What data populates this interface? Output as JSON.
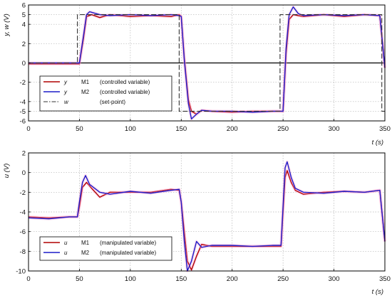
{
  "chart_data": [
    {
      "type": "line",
      "ylabel": "y, w (V)",
      "xlabel": "t (s)",
      "xlim": [
        0,
        350
      ],
      "ylim": [
        -6,
        6
      ],
      "xticks": [
        "0",
        "50",
        "100",
        "150",
        "200",
        "250",
        "300",
        "350"
      ],
      "yticks": [
        "-6",
        "-5",
        "-4",
        "-2",
        "0",
        "2",
        "4",
        "5",
        "6"
      ],
      "grid": true,
      "legend_position": "bottom-left",
      "legend": [
        {
          "symbol": "y",
          "model": "M1",
          "desc": "(controlled variable)",
          "color": "#b00000"
        },
        {
          "symbol": "y",
          "model": "M2",
          "desc": "(controlled variable)",
          "color": "#1c1cc8"
        },
        {
          "symbol": "w",
          "model": "",
          "desc": "(set-point)",
          "color": "#333333"
        }
      ],
      "series": [
        {
          "name": "y M1",
          "color": "#b00000",
          "x": [
            0,
            45,
            50,
            54,
            57,
            62,
            70,
            80,
            100,
            120,
            140,
            148,
            150,
            153,
            157,
            160,
            165,
            170,
            180,
            200,
            220,
            240,
            248,
            250,
            253,
            256,
            260,
            270,
            290,
            310,
            330,
            345,
            350
          ],
          "y": [
            -0.1,
            -0.1,
            -0.1,
            2.5,
            4.8,
            5.0,
            4.7,
            5.0,
            4.8,
            4.9,
            4.8,
            5.0,
            4.8,
            0.5,
            -3.8,
            -5.0,
            -5.3,
            -4.9,
            -5.0,
            -5.1,
            -5.0,
            -5.0,
            -5.0,
            -5.0,
            1.0,
            4.5,
            5.0,
            4.8,
            5.0,
            4.8,
            5.0,
            4.9,
            -0.5
          ]
        },
        {
          "name": "y M2",
          "color": "#1c1cc8",
          "x": [
            0,
            45,
            50,
            54,
            57,
            60,
            70,
            80,
            100,
            120,
            140,
            148,
            150,
            153,
            157,
            160,
            165,
            170,
            180,
            200,
            220,
            240,
            248,
            250,
            253,
            256,
            260,
            265,
            270,
            290,
            310,
            330,
            345,
            350
          ],
          "y": [
            0.0,
            0.0,
            0.0,
            2.8,
            5.0,
            5.3,
            5.0,
            4.9,
            5.0,
            4.9,
            5.0,
            4.9,
            4.8,
            0.3,
            -4.2,
            -5.8,
            -5.3,
            -4.9,
            -5.0,
            -5.0,
            -5.1,
            -5.0,
            -5.0,
            -5.0,
            1.5,
            5.0,
            5.8,
            5.1,
            4.9,
            5.0,
            4.9,
            5.0,
            4.9,
            -0.5
          ]
        },
        {
          "name": "w",
          "color": "#333333",
          "dashed": true,
          "x": [
            0,
            48,
            48,
            148,
            148,
            247,
            247,
            347,
            347,
            350
          ],
          "y": [
            0,
            0,
            5,
            5,
            -5,
            -5,
            5,
            5,
            -5,
            -5
          ]
        }
      ]
    },
    {
      "type": "line",
      "ylabel": "u (V)",
      "xlabel": "t (s)",
      "xlim": [
        0,
        350
      ],
      "ylim": [
        -10,
        2
      ],
      "xticks": [
        "0",
        "50",
        "100",
        "150",
        "200",
        "250",
        "300",
        "350"
      ],
      "yticks": [
        "-10",
        "-8",
        "-6",
        "-4",
        "-2",
        "0",
        "2"
      ],
      "grid": true,
      "legend_position": "bottom-left",
      "legend": [
        {
          "symbol": "u",
          "model": "M1",
          "desc": "(manipulated variable)",
          "color": "#b00000"
        },
        {
          "symbol": "u",
          "model": "M2",
          "desc": "(manipulated variable)",
          "color": "#1c1cc8"
        }
      ],
      "series": [
        {
          "name": "u M1",
          "color": "#b00000",
          "x": [
            0,
            20,
            40,
            48,
            50,
            53,
            57,
            62,
            70,
            80,
            100,
            120,
            140,
            148,
            150,
            153,
            156,
            160,
            165,
            170,
            180,
            200,
            220,
            240,
            248,
            250,
            252,
            254,
            258,
            262,
            270,
            290,
            310,
            330,
            345,
            350
          ],
          "y": [
            -4.5,
            -4.6,
            -4.5,
            -4.5,
            -3.5,
            -1.5,
            -1.0,
            -1.6,
            -2.5,
            -2.0,
            -2.0,
            -2.0,
            -1.7,
            -1.8,
            -3.0,
            -6.0,
            -9.0,
            -9.9,
            -8.5,
            -7.3,
            -7.5,
            -7.5,
            -7.5,
            -7.5,
            -7.5,
            -4.0,
            -0.5,
            0.2,
            -1.0,
            -1.8,
            -2.2,
            -2.0,
            -1.9,
            -2.0,
            -1.8,
            -7.0
          ]
        },
        {
          "name": "u M2",
          "color": "#1c1cc8",
          "x": [
            0,
            20,
            40,
            48,
            50,
            53,
            56,
            60,
            70,
            80,
            100,
            120,
            140,
            148,
            150,
            153,
            156,
            160,
            165,
            170,
            180,
            200,
            220,
            240,
            248,
            250,
            252,
            254,
            258,
            262,
            270,
            290,
            310,
            330,
            345,
            350
          ],
          "y": [
            -4.6,
            -4.7,
            -4.5,
            -4.5,
            -3.0,
            -1.0,
            -0.3,
            -1.2,
            -2.0,
            -2.2,
            -1.9,
            -2.1,
            -1.8,
            -1.7,
            -3.0,
            -7.0,
            -10.0,
            -9.0,
            -7.0,
            -7.6,
            -7.4,
            -7.4,
            -7.5,
            -7.4,
            -7.4,
            -3.5,
            0.5,
            1.1,
            -0.5,
            -1.6,
            -2.0,
            -2.1,
            -1.9,
            -2.0,
            -1.8,
            -7.0
          ]
        }
      ]
    }
  ]
}
